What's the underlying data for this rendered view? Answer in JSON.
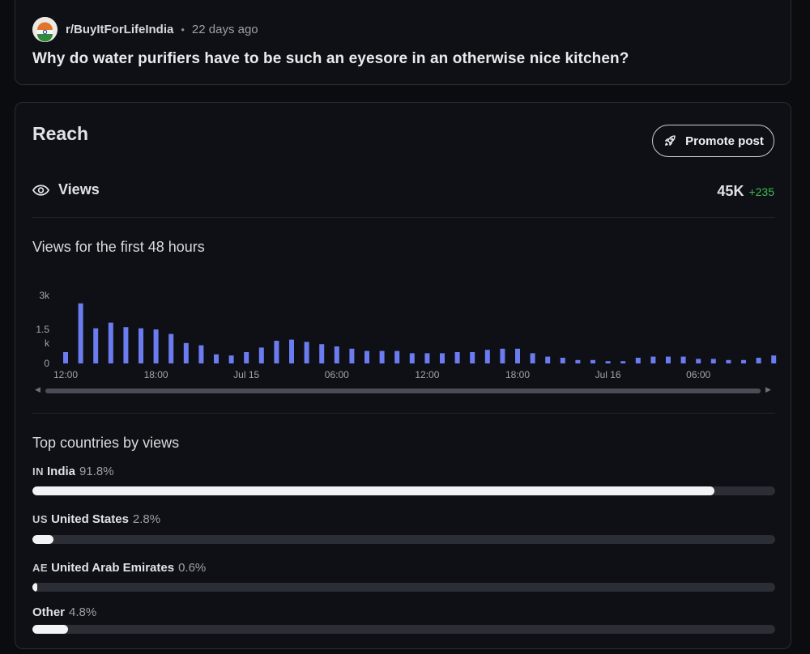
{
  "post": {
    "subreddit": "r/BuyItForLifeIndia",
    "age": "22 days ago",
    "title": "Why do water purifiers have to be such an eyesore in an otherwise nice kitchen?"
  },
  "reach": {
    "title": "Reach",
    "promote_label": "Promote post",
    "views_label": "Views",
    "views_count": "45K",
    "views_delta": "+235",
    "chart_title": "Views for the first 48 hours",
    "top_countries_title": "Top countries by views"
  },
  "chart_data": {
    "type": "bar",
    "color": "#6b7cf0",
    "y_ticks": [
      "3k",
      "1.5\nk",
      "0"
    ],
    "ylim": [
      0,
      3000
    ],
    "x_tick_labels": [
      "12:00",
      "18:00",
      "Jul 15",
      "06:00",
      "12:00",
      "18:00",
      "Jul 16",
      "06:00"
    ],
    "x_tick_bar_index": [
      0,
      6,
      12,
      18,
      24,
      30,
      36,
      42
    ],
    "values": [
      500,
      2650,
      1550,
      1800,
      1600,
      1550,
      1500,
      1300,
      900,
      800,
      400,
      350,
      500,
      700,
      1000,
      1050,
      950,
      850,
      750,
      650,
      550,
      550,
      550,
      450,
      450,
      450,
      500,
      500,
      600,
      650,
      650,
      450,
      300,
      250,
      150,
      150,
      100,
      100,
      250,
      300,
      300,
      300,
      200,
      200,
      150,
      150,
      250,
      350,
      300
    ]
  },
  "countries": [
    {
      "code": "IN",
      "name": "India",
      "pct_label": "91.8%",
      "fraction": 0.918
    },
    {
      "code": "US",
      "name": "United States",
      "pct_label": "2.8%",
      "fraction": 0.028
    },
    {
      "code": "AE",
      "name": "United Arab Emirates",
      "pct_label": "0.6%",
      "fraction": 0.006
    },
    {
      "code": "",
      "name": "Other",
      "pct_label": "4.8%",
      "fraction": 0.048
    }
  ]
}
